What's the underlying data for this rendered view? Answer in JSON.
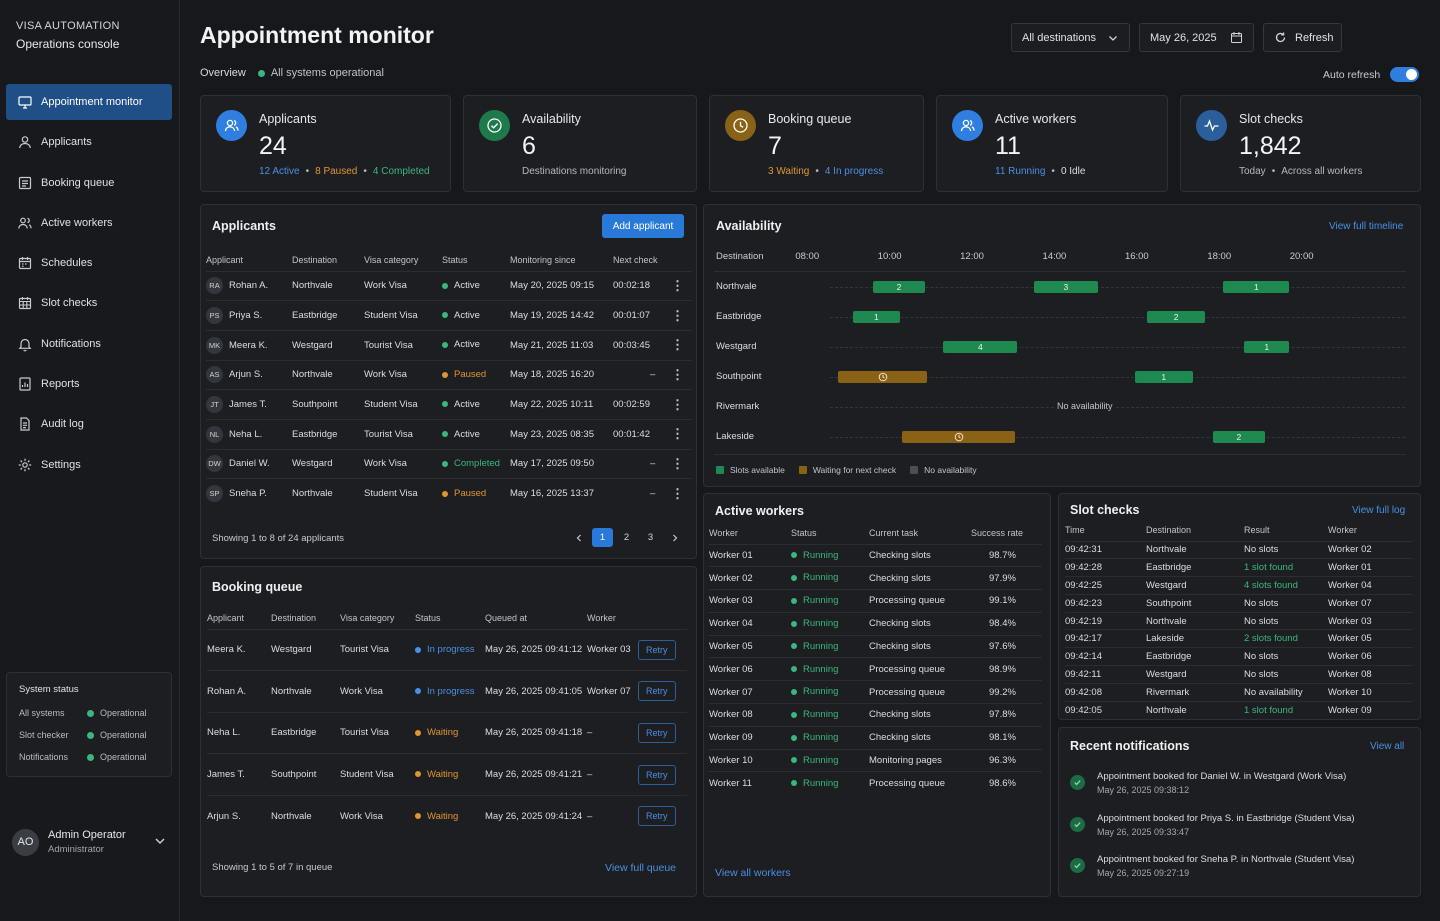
{
  "brand": {
    "line1": "VISA AUTOMATION",
    "line2": "Operations console"
  },
  "nav": [
    {
      "label": "Appointment monitor",
      "icon": "monitor-icon",
      "active": true
    },
    {
      "label": "Applicants",
      "icon": "user-icon"
    },
    {
      "label": "Booking queue",
      "icon": "list-icon"
    },
    {
      "label": "Active workers",
      "icon": "users-icon"
    },
    {
      "label": "Schedules",
      "icon": "calendar-icon"
    },
    {
      "label": "Slot checks",
      "icon": "grid-calendar-icon"
    },
    {
      "label": "Notifications",
      "icon": "bell-icon"
    },
    {
      "label": "Reports",
      "icon": "report-icon"
    },
    {
      "label": "Audit log",
      "icon": "document-icon"
    },
    {
      "label": "Settings",
      "icon": "gear-icon"
    }
  ],
  "system_status": {
    "title": "System status",
    "rows": [
      {
        "name": "All systems",
        "status": "Operational"
      },
      {
        "name": "Slot checker",
        "status": "Operational"
      },
      {
        "name": "Notifications",
        "status": "Operational"
      }
    ]
  },
  "user": {
    "initials": "AO",
    "name": "Admin Operator",
    "role": "Administrator"
  },
  "header": {
    "title": "Appointment monitor",
    "overview": "Overview",
    "ops_status": "All systems operational",
    "destination_select": "All destinations",
    "date": "May 26, 2025",
    "refresh": "Refresh",
    "auto_refresh": "Auto refresh",
    "auto_refresh_on": true
  },
  "stats": {
    "applicants": {
      "label": "Applicants",
      "value": "24",
      "sub1": "12 Active",
      "sub2": "8 Paused",
      "sub3": "4 Completed"
    },
    "availability": {
      "label": "Availability",
      "value": "6",
      "sub": "Destinations monitoring"
    },
    "booking": {
      "label": "Booking queue",
      "value": "7",
      "sub1": "3 Waiting",
      "sub2": "4 In progress"
    },
    "workers": {
      "label": "Active workers",
      "value": "11",
      "sub1": "11 Running",
      "sub2": "0 Idle"
    },
    "slots": {
      "label": "Slot checks",
      "value": "1,842",
      "sub1": "Today",
      "sub2": "Across all workers"
    }
  },
  "applicants": {
    "title": "Applicants",
    "add": "Add applicant",
    "columns": [
      "Applicant",
      "Destination",
      "Visa category",
      "Status",
      "Monitoring since",
      "Next check"
    ],
    "rows": [
      {
        "ini": "RA",
        "name": "Rohan A.",
        "dest": "Northvale",
        "cat": "Work Visa",
        "status": "Active",
        "since": "May 20, 2025 09:15",
        "next": "00:02:18"
      },
      {
        "ini": "PS",
        "name": "Priya S.",
        "dest": "Eastbridge",
        "cat": "Student Visa",
        "status": "Active",
        "since": "May 19, 2025 14:42",
        "next": "00:01:07"
      },
      {
        "ini": "MK",
        "name": "Meera K.",
        "dest": "Westgard",
        "cat": "Tourist Visa",
        "status": "Active",
        "since": "May 21, 2025 11:03",
        "next": "00:03:45"
      },
      {
        "ini": "AS",
        "name": "Arjun S.",
        "dest": "Northvale",
        "cat": "Work Visa",
        "status": "Paused",
        "since": "May 18, 2025 16:20",
        "next": "–"
      },
      {
        "ini": "JT",
        "name": "James T.",
        "dest": "Southpoint",
        "cat": "Student Visa",
        "status": "Active",
        "since": "May 22, 2025 10:11",
        "next": "00:02:59"
      },
      {
        "ini": "NL",
        "name": "Neha L.",
        "dest": "Eastbridge",
        "cat": "Tourist Visa",
        "status": "Active",
        "since": "May 23, 2025 08:35",
        "next": "00:01:42"
      },
      {
        "ini": "DW",
        "name": "Daniel W.",
        "dest": "Westgard",
        "cat": "Work Visa",
        "status": "Completed",
        "since": "May 17, 2025 09:50",
        "next": "–"
      },
      {
        "ini": "SP",
        "name": "Sneha P.",
        "dest": "Northvale",
        "cat": "Student Visa",
        "status": "Paused",
        "since": "May 16, 2025 13:37",
        "next": "–"
      }
    ],
    "showing": "Showing 1 to 8 of 24 applicants",
    "pages": [
      "1",
      "2",
      "3"
    ]
  },
  "booking_queue": {
    "title": "Booking queue",
    "columns": [
      "Applicant",
      "Destination",
      "Visa category",
      "Status",
      "Queued at",
      "Worker"
    ],
    "rows": [
      {
        "name": "Meera K.",
        "dest": "Westgard",
        "cat": "Tourist Visa",
        "status": "In progress",
        "queued": "May 26, 2025 09:41:12",
        "worker": "Worker 03"
      },
      {
        "name": "Rohan A.",
        "dest": "Northvale",
        "cat": "Work Visa",
        "status": "In progress",
        "queued": "May 26, 2025 09:41:05",
        "worker": "Worker 07"
      },
      {
        "name": "Neha L.",
        "dest": "Eastbridge",
        "cat": "Tourist Visa",
        "status": "Waiting",
        "queued": "May 26, 2025 09:41:18",
        "worker": "–"
      },
      {
        "name": "James T.",
        "dest": "Southpoint",
        "cat": "Student Visa",
        "status": "Waiting",
        "queued": "May 26, 2025 09:41:21",
        "worker": "–"
      },
      {
        "name": "Arjun S.",
        "dest": "Northvale",
        "cat": "Work Visa",
        "status": "Waiting",
        "queued": "May 26, 2025 09:41:24",
        "worker": "–"
      }
    ],
    "retry": "Retry",
    "showing": "Showing 1 to 5 of 7 in queue",
    "view_full": "View full queue"
  },
  "availability": {
    "title": "Availability",
    "view_full": "View full timeline",
    "dest_header": "Destination",
    "hours": [
      "08:00",
      "10:00",
      "12:00",
      "14:00",
      "16:00",
      "18:00",
      "20:00"
    ],
    "rows": [
      {
        "dest": "Northvale",
        "blocks": [
          {
            "start": 9.6,
            "end": 10.85,
            "type": "available",
            "label": "2"
          },
          {
            "start": 13.5,
            "end": 15.05,
            "type": "available",
            "label": "3"
          },
          {
            "start": 18.1,
            "end": 19.7,
            "type": "available",
            "label": "1"
          }
        ]
      },
      {
        "dest": "Eastbridge",
        "blocks": [
          {
            "start": 9.1,
            "end": 10.25,
            "type": "available",
            "label": "1"
          },
          {
            "start": 16.25,
            "end": 17.65,
            "type": "available",
            "label": "2"
          }
        ]
      },
      {
        "dest": "Westgard",
        "blocks": [
          {
            "start": 11.3,
            "end": 13.1,
            "type": "available",
            "label": "4"
          },
          {
            "start": 18.6,
            "end": 19.7,
            "type": "available",
            "label": "1"
          }
        ]
      },
      {
        "dest": "Southpoint",
        "blocks": [
          {
            "start": 8.75,
            "end": 10.9,
            "type": "waiting",
            "label": ""
          },
          {
            "start": 15.95,
            "end": 17.35,
            "type": "available",
            "label": "1"
          }
        ]
      },
      {
        "dest": "Rivermark",
        "blocks": [],
        "note": "No availability"
      },
      {
        "dest": "Lakeside",
        "blocks": [
          {
            "start": 10.3,
            "end": 13.05,
            "type": "waiting",
            "label": ""
          },
          {
            "start": 17.85,
            "end": 19.1,
            "type": "available",
            "label": "2"
          }
        ]
      }
    ],
    "legend": [
      "Slots available",
      "Waiting for next check",
      "No availability"
    ]
  },
  "workers": {
    "title": "Active workers",
    "columns": [
      "Worker",
      "Status",
      "Current task",
      "Success rate"
    ],
    "rows": [
      {
        "name": "Worker 01",
        "status": "Running",
        "task": "Checking slots",
        "rate": "98.7%"
      },
      {
        "name": "Worker 02",
        "status": "Running",
        "task": "Checking slots",
        "rate": "97.9%"
      },
      {
        "name": "Worker 03",
        "status": "Running",
        "task": "Processing queue",
        "rate": "99.1%"
      },
      {
        "name": "Worker 04",
        "status": "Running",
        "task": "Checking slots",
        "rate": "98.4%"
      },
      {
        "name": "Worker 05",
        "status": "Running",
        "task": "Checking slots",
        "rate": "97.6%"
      },
      {
        "name": "Worker 06",
        "status": "Running",
        "task": "Processing queue",
        "rate": "98.9%"
      },
      {
        "name": "Worker 07",
        "status": "Running",
        "task": "Processing queue",
        "rate": "99.2%"
      },
      {
        "name": "Worker 08",
        "status": "Running",
        "task": "Checking slots",
        "rate": "97.8%"
      },
      {
        "name": "Worker 09",
        "status": "Running",
        "task": "Checking slots",
        "rate": "98.1%"
      },
      {
        "name": "Worker 10",
        "status": "Running",
        "task": "Monitoring pages",
        "rate": "96.3%"
      },
      {
        "name": "Worker 11",
        "status": "Running",
        "task": "Processing queue",
        "rate": "98.6%"
      }
    ],
    "view_all": "View all workers"
  },
  "slot_checks": {
    "title": "Slot checks",
    "view_full": "View full log",
    "columns": [
      "Time",
      "Destination",
      "Result",
      "Worker"
    ],
    "rows": [
      {
        "time": "09:42:31",
        "dest": "Northvale",
        "result": "No slots",
        "found": false,
        "worker": "Worker 02"
      },
      {
        "time": "09:42:28",
        "dest": "Eastbridge",
        "result": "1 slot found",
        "found": true,
        "worker": "Worker 01"
      },
      {
        "time": "09:42:25",
        "dest": "Westgard",
        "result": "4 slots found",
        "found": true,
        "worker": "Worker 04"
      },
      {
        "time": "09:42:23",
        "dest": "Southpoint",
        "result": "No slots",
        "found": false,
        "worker": "Worker 07"
      },
      {
        "time": "09:42:19",
        "dest": "Northvale",
        "result": "No slots",
        "found": false,
        "worker": "Worker 03"
      },
      {
        "time": "09:42:17",
        "dest": "Lakeside",
        "result": "2 slots found",
        "found": true,
        "worker": "Worker 05"
      },
      {
        "time": "09:42:14",
        "dest": "Eastbridge",
        "result": "No slots",
        "found": false,
        "worker": "Worker 06"
      },
      {
        "time": "09:42:11",
        "dest": "Westgard",
        "result": "No slots",
        "found": false,
        "worker": "Worker 08"
      },
      {
        "time": "09:42:08",
        "dest": "Rivermark",
        "result": "No availability",
        "found": false,
        "worker": "Worker 10"
      },
      {
        "time": "09:42:05",
        "dest": "Northvale",
        "result": "1 slot found",
        "found": true,
        "worker": "Worker 09"
      }
    ]
  },
  "notifications": {
    "title": "Recent notifications",
    "view_all": "View all",
    "items": [
      {
        "text": "Appointment booked for Daniel W. in Westgard (Work Visa)",
        "date": "May 26, 2025 09:38:12"
      },
      {
        "text": "Appointment booked for Priya S. in Eastbridge (Student Visa)",
        "date": "May 26, 2025 09:33:47"
      },
      {
        "text": "Appointment booked for Sneha P. in Northvale (Student Visa)",
        "date": "May 26, 2025 09:27:19"
      }
    ]
  },
  "colors": {
    "accent": "#2979d9",
    "active": "#3bb77e",
    "paused": "#e0962e",
    "progress": "#4a90e2",
    "available": "#1f8a4f",
    "waiting": "#8a6215"
  }
}
